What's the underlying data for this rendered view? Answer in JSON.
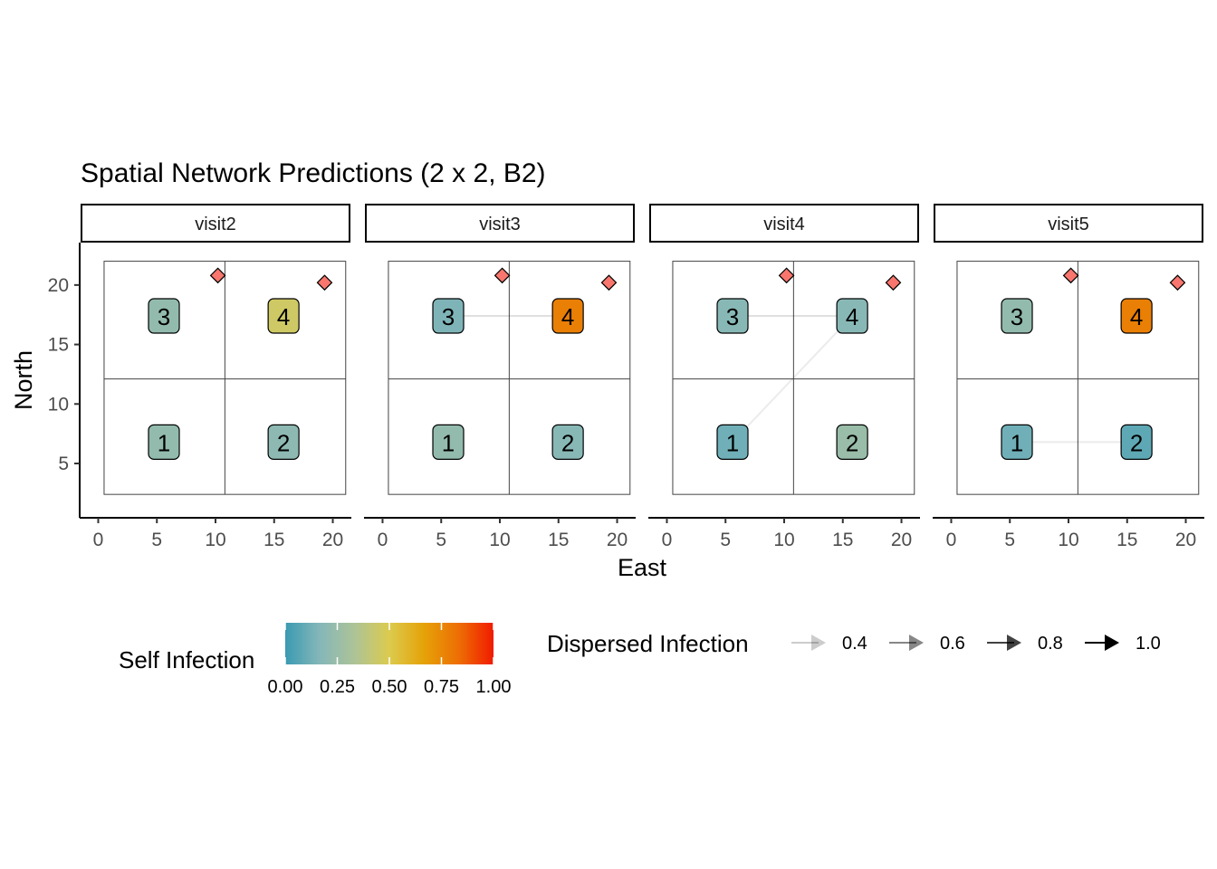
{
  "chart_data": {
    "type": "scatter",
    "title": "Spatial Network Predictions (2 x 2, B2)",
    "xlabel": "East",
    "ylabel": "North",
    "xlim": [
      -0.5,
      20.5
    ],
    "ylim": [
      1.5,
      22.5
    ],
    "x_ticks": [
      0,
      5,
      10,
      15,
      20
    ],
    "y_ticks": [
      5,
      10,
      15,
      20
    ],
    "grid": false,
    "grid_divisions": {
      "x": [
        0.5,
        10.8,
        21.1
      ],
      "y": [
        2.4,
        12.1,
        22.0
      ]
    },
    "marker_color": "#F8766D",
    "markers": [
      {
        "x": 10.2,
        "y": 20.8
      },
      {
        "x": 19.3,
        "y": 20.2
      }
    ],
    "nodes": [
      {
        "id": "1",
        "x": 5.6,
        "y": 6.8
      },
      {
        "id": "2",
        "x": 15.8,
        "y": 6.8
      },
      {
        "id": "3",
        "x": 5.6,
        "y": 17.4
      },
      {
        "id": "4",
        "x": 15.8,
        "y": 17.4
      }
    ],
    "panels": [
      {
        "label": "visit2",
        "self_infection": {
          "1": 0.22,
          "2": 0.2,
          "3": 0.22,
          "4": 0.45
        },
        "edges": []
      },
      {
        "label": "visit3",
        "self_infection": {
          "1": 0.22,
          "2": 0.18,
          "3": 0.15,
          "4": 0.78
        },
        "edges": [
          {
            "from": "4",
            "to": "3",
            "value": 0.4
          }
        ]
      },
      {
        "label": "visit4",
        "self_infection": {
          "1": 0.12,
          "2": 0.25,
          "3": 0.18,
          "4": 0.18
        },
        "edges": [
          {
            "from": "4",
            "to": "3",
            "value": 0.4
          },
          {
            "from": "4",
            "to": "1",
            "value": 0.35
          }
        ]
      },
      {
        "label": "visit5",
        "self_infection": {
          "1": 0.12,
          "2": 0.08,
          "3": 0.22,
          "4": 0.78
        },
        "edges": [
          {
            "from": "1",
            "to": "2",
            "value": 0.35
          }
        ]
      }
    ],
    "color_scale": {
      "title": "Self Infection",
      "stops": [
        "#3A9AB2",
        "#85B7B9",
        "#ADC397",
        "#DCCB4E",
        "#E5A208",
        "#ED6E04",
        "#F11B00"
      ],
      "limits": [
        0,
        1
      ],
      "breaks": [
        "0.00",
        "0.25",
        "0.50",
        "0.75",
        "1.00"
      ]
    },
    "edge_legend": {
      "title": "Dispersed Infection",
      "items": [
        {
          "label": "0.4",
          "value": 0.4
        },
        {
          "label": "0.6",
          "value": 0.6
        },
        {
          "label": "0.8",
          "value": 0.8
        },
        {
          "label": "1.0",
          "value": 1.0
        }
      ]
    }
  }
}
